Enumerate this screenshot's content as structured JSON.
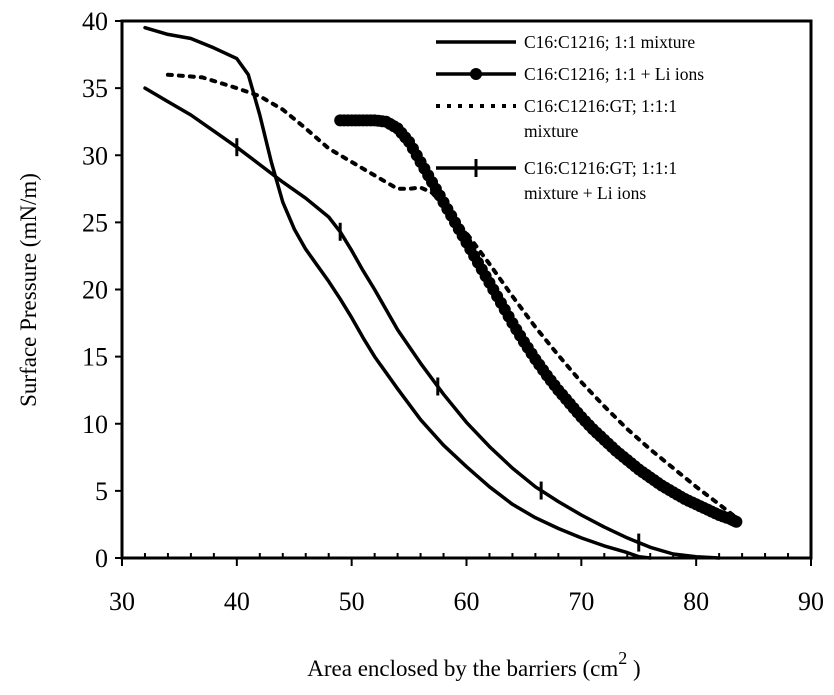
{
  "chart_data": {
    "type": "line",
    "title": "",
    "xlabel": "Area enclosed by the barriers (cm",
    "xlabel_superscript": "2",
    "xlabel_suffix": " )",
    "ylabel": "Surface Pressure (mN/m)",
    "xlim": [
      30,
      90
    ],
    "ylim": [
      0,
      40
    ],
    "x_ticks": [
      30,
      40,
      50,
      60,
      70,
      80,
      90
    ],
    "y_ticks": [
      0,
      5,
      10,
      15,
      20,
      25,
      30,
      35,
      40
    ],
    "grid": false,
    "legend_position": "top-right",
    "series": [
      {
        "name": "C16:C1216; 1:1 mixture",
        "style": "solid",
        "x": [
          32,
          34,
          36,
          38,
          40,
          41,
          42,
          43,
          44,
          45,
          46,
          47,
          48,
          49,
          50,
          51,
          52,
          53,
          54,
          56,
          58,
          60,
          62,
          64,
          66,
          68,
          70,
          72,
          74,
          75,
          76
        ],
        "y": [
          39.5,
          39,
          38.7,
          38,
          37.2,
          36,
          33,
          29.5,
          26.5,
          24.5,
          23,
          21.8,
          20.6,
          19.3,
          17.9,
          16.4,
          15,
          13.8,
          12.6,
          10.3,
          8.4,
          6.8,
          5.3,
          4.0,
          3.0,
          2.2,
          1.5,
          0.9,
          0.4,
          0.1,
          0
        ]
      },
      {
        "name": "C16:C1216; 1:1 + Li ions",
        "style": "solid-dots",
        "x": [
          49,
          50,
          51,
          52,
          53,
          54,
          55,
          56,
          57,
          58,
          59,
          60,
          61,
          62,
          63,
          64,
          65,
          66,
          67,
          68,
          69,
          70,
          71,
          72,
          73,
          74,
          75,
          76,
          77,
          78,
          79,
          80,
          81,
          82,
          83,
          83.5
        ],
        "y": [
          32.6,
          32.6,
          32.6,
          32.6,
          32.5,
          32,
          31,
          29.5,
          28,
          26.5,
          25,
          23.5,
          22,
          20.5,
          19,
          17.5,
          16.1,
          14.8,
          13.6,
          12.5,
          11.5,
          10.5,
          9.6,
          8.8,
          8.0,
          7.3,
          6.6,
          6.0,
          5.4,
          4.9,
          4.4,
          4.0,
          3.6,
          3.2,
          2.9,
          2.7
        ]
      },
      {
        "name": "C16:C1216:GT; 1:1:1 mixture",
        "style": "dotted",
        "x": [
          34,
          37,
          40,
          42,
          44,
          46,
          48,
          50,
          52,
          54,
          55,
          56,
          57,
          58,
          60,
          62,
          64,
          66,
          68,
          70,
          72,
          74,
          76,
          78,
          80,
          82,
          83.5
        ],
        "y": [
          36,
          35.8,
          35,
          34.4,
          33.4,
          32,
          30.5,
          29.5,
          28.5,
          27.5,
          27.5,
          27.6,
          27.2,
          26.3,
          24.2,
          21.9,
          19.5,
          17.2,
          15.1,
          13.1,
          11.3,
          9.6,
          8.1,
          6.7,
          5.3,
          4.0,
          3.0
        ]
      },
      {
        "name": "C16:C1216:GT; 1:1:1 mixture + Li ions",
        "style": "solid-ticks",
        "x": [
          32,
          34,
          36,
          38,
          40,
          42,
          44,
          46,
          48,
          49,
          50,
          51,
          52,
          54,
          56,
          58,
          60,
          62,
          64,
          66,
          68,
          70,
          72,
          74,
          76,
          78,
          80,
          82
        ],
        "y": [
          35,
          34,
          33,
          31.8,
          30.6,
          29.3,
          28,
          26.8,
          25.4,
          24.3,
          22.9,
          21.4,
          20,
          17,
          14.5,
          12.2,
          10.1,
          8.3,
          6.7,
          5.3,
          4.2,
          3.2,
          2.3,
          1.5,
          0.8,
          0.3,
          0.1,
          0
        ]
      }
    ],
    "legend_entries": [
      {
        "lines": [
          "C16:C1216; 1:1 mixture"
        ],
        "style": "solid"
      },
      {
        "lines": [
          "C16:C1216; 1:1 + Li ions"
        ],
        "style": "solid-dots"
      },
      {
        "lines": [
          "C16:C1216:GT; 1:1:1",
          "mixture"
        ],
        "style": "dotted"
      },
      {
        "lines": [
          "C16:C1216:GT; 1:1:1",
          "mixture + Li ions"
        ],
        "style": "solid-ticks"
      }
    ]
  }
}
